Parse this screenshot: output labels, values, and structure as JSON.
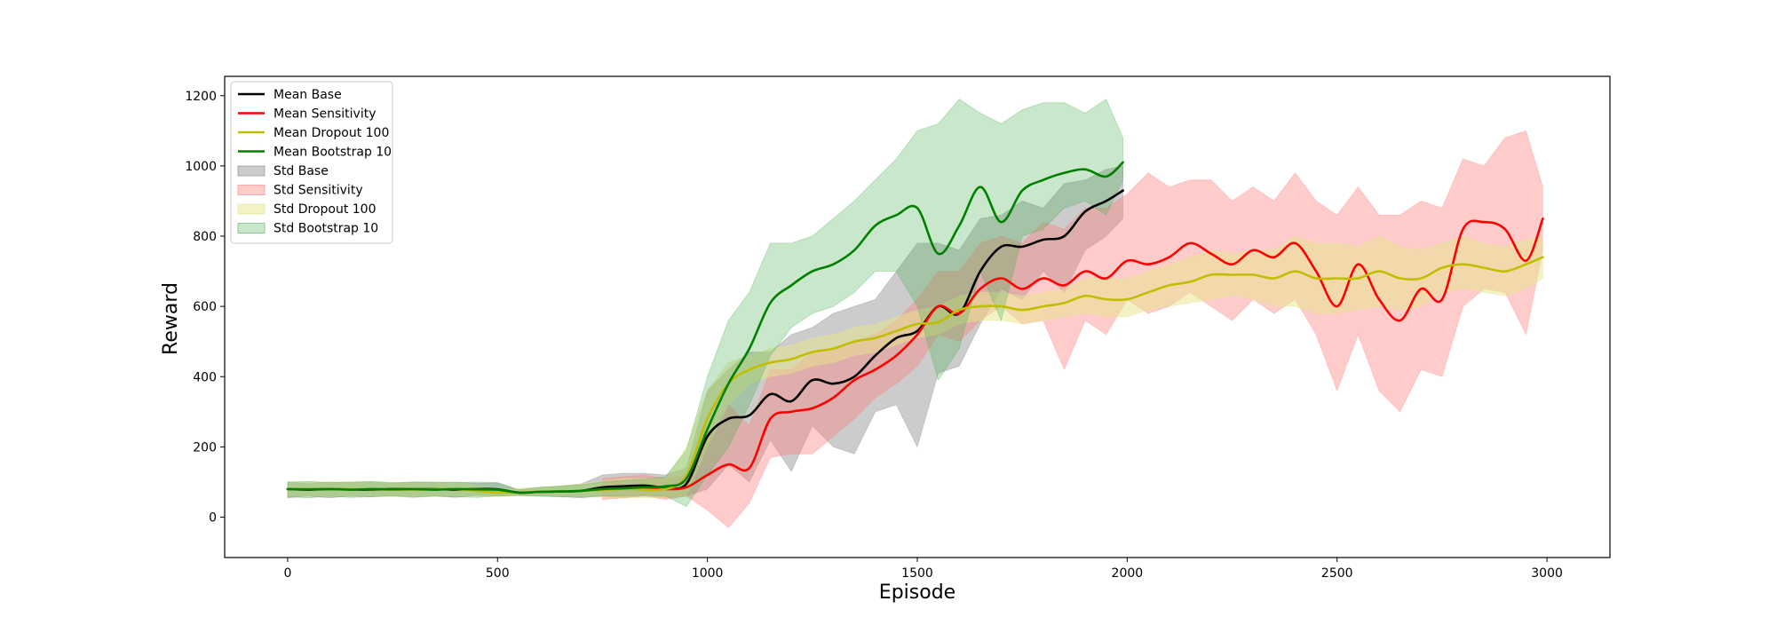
{
  "chart_data": {
    "type": "line",
    "title": "",
    "xlabel": "Episode",
    "ylabel": "Reward",
    "xlim": [
      -150,
      3150
    ],
    "ylim": [
      -115,
      1255
    ],
    "x_ticks": [
      0,
      500,
      1000,
      1500,
      2000,
      2500,
      3000
    ],
    "y_ticks": [
      0,
      200,
      400,
      600,
      800,
      1000,
      1200
    ],
    "grid": false,
    "legend_position": "upper left",
    "series": [
      {
        "name": "Mean Base",
        "kind": "line",
        "color": "#000000",
        "x": [
          0,
          50,
          100,
          150,
          200,
          250,
          300,
          350,
          400,
          450,
          500,
          550,
          600,
          650,
          700,
          750,
          800,
          850,
          900,
          950,
          1000,
          1050,
          1100,
          1150,
          1200,
          1250,
          1300,
          1350,
          1400,
          1450,
          1500,
          1550,
          1600,
          1650,
          1700,
          1750,
          1800,
          1850,
          1900,
          1950,
          1990
        ],
        "y": [
          80,
          78,
          80,
          79,
          78,
          80,
          79,
          80,
          78,
          80,
          79,
          70,
          72,
          73,
          75,
          85,
          88,
          90,
          85,
          95,
          230,
          280,
          290,
          350,
          330,
          390,
          380,
          400,
          460,
          510,
          530,
          600,
          580,
          700,
          770,
          770,
          790,
          800,
          870,
          900,
          930
        ]
      },
      {
        "name": "Mean Sensitivity",
        "kind": "line",
        "color": "#ff0000",
        "x": [
          750,
          800,
          850,
          900,
          950,
          1000,
          1050,
          1100,
          1150,
          1200,
          1250,
          1300,
          1350,
          1400,
          1450,
          1500,
          1550,
          1600,
          1650,
          1700,
          1750,
          1800,
          1850,
          1900,
          1950,
          2000,
          2050,
          2100,
          2150,
          2200,
          2250,
          2300,
          2350,
          2400,
          2450,
          2500,
          2550,
          2600,
          2650,
          2700,
          2750,
          2800,
          2850,
          2900,
          2950,
          2990
        ],
        "y": [
          80,
          82,
          85,
          80,
          85,
          120,
          150,
          140,
          280,
          300,
          310,
          340,
          390,
          420,
          460,
          520,
          600,
          580,
          650,
          680,
          650,
          680,
          660,
          700,
          680,
          730,
          720,
          740,
          780,
          750,
          720,
          760,
          740,
          780,
          700,
          600,
          720,
          620,
          560,
          650,
          620,
          820,
          840,
          820,
          730,
          850
        ]
      },
      {
        "name": "Mean Dropout 100",
        "kind": "line",
        "color": "#bfbf00",
        "x": [
          0,
          100,
          200,
          300,
          400,
          500,
          600,
          700,
          800,
          900,
          950,
          1000,
          1050,
          1100,
          1150,
          1200,
          1250,
          1300,
          1350,
          1400,
          1450,
          1500,
          1550,
          1600,
          1650,
          1700,
          1750,
          1800,
          1850,
          1900,
          1950,
          2000,
          2050,
          2100,
          2150,
          2200,
          2250,
          2300,
          2350,
          2400,
          2450,
          2500,
          2550,
          2600,
          2650,
          2700,
          2750,
          2800,
          2850,
          2900,
          2950,
          2990
        ],
        "y": [
          80,
          80,
          79,
          78,
          80,
          70,
          72,
          75,
          80,
          80,
          120,
          280,
          380,
          420,
          440,
          450,
          470,
          480,
          500,
          510,
          530,
          550,
          555,
          590,
          600,
          600,
          590,
          600,
          610,
          630,
          620,
          620,
          640,
          660,
          670,
          690,
          690,
          690,
          680,
          700,
          680,
          680,
          680,
          700,
          680,
          680,
          710,
          720,
          710,
          700,
          720,
          740
        ]
      },
      {
        "name": "Mean Bootstrap 10",
        "kind": "line",
        "color": "#008000",
        "x": [
          0,
          50,
          100,
          150,
          200,
          250,
          300,
          350,
          400,
          450,
          500,
          550,
          600,
          650,
          700,
          750,
          800,
          850,
          900,
          950,
          1000,
          1050,
          1100,
          1150,
          1200,
          1250,
          1300,
          1350,
          1400,
          1450,
          1500,
          1550,
          1600,
          1650,
          1700,
          1750,
          1800,
          1850,
          1900,
          1950,
          1990
        ],
        "y": [
          80,
          79,
          80,
          78,
          80,
          79,
          80,
          78,
          80,
          79,
          78,
          70,
          72,
          73,
          75,
          80,
          82,
          85,
          88,
          110,
          250,
          380,
          480,
          610,
          660,
          700,
          720,
          760,
          830,
          860,
          880,
          750,
          830,
          940,
          840,
          930,
          960,
          980,
          990,
          970,
          1010
        ]
      },
      {
        "name": "Std Base",
        "kind": "band",
        "color": "#808080",
        "opacity": 0.4,
        "x": [
          0,
          50,
          100,
          150,
          200,
          250,
          300,
          350,
          400,
          450,
          500,
          550,
          600,
          650,
          700,
          750,
          800,
          850,
          900,
          950,
          1000,
          1050,
          1100,
          1150,
          1200,
          1250,
          1300,
          1350,
          1400,
          1450,
          1500,
          1550,
          1600,
          1650,
          1700,
          1750,
          1800,
          1850,
          1900,
          1950,
          1990
        ],
        "lower": [
          55,
          60,
          55,
          60,
          58,
          62,
          58,
          60,
          56,
          62,
          60,
          62,
          60,
          58,
          55,
          60,
          55,
          60,
          55,
          60,
          80,
          150,
          100,
          220,
          130,
          260,
          200,
          180,
          300,
          320,
          200,
          410,
          430,
          550,
          650,
          620,
          700,
          640,
          760,
          800,
          850
        ],
        "upper": [
          100,
          95,
          100,
          98,
          100,
          96,
          100,
          98,
          100,
          96,
          98,
          78,
          85,
          88,
          95,
          120,
          125,
          125,
          120,
          140,
          360,
          420,
          470,
          470,
          520,
          540,
          580,
          600,
          620,
          700,
          780,
          780,
          760,
          850,
          860,
          900,
          880,
          950,
          960,
          990,
          1000
        ]
      },
      {
        "name": "Std Sensitivity",
        "kind": "band",
        "color": "#ff7f7f",
        "opacity": 0.4,
        "x": [
          750,
          800,
          850,
          900,
          950,
          1000,
          1050,
          1100,
          1150,
          1200,
          1250,
          1300,
          1350,
          1400,
          1450,
          1500,
          1550,
          1600,
          1650,
          1700,
          1750,
          1800,
          1850,
          1900,
          1950,
          2000,
          2050,
          2100,
          2150,
          2200,
          2250,
          2300,
          2350,
          2400,
          2450,
          2500,
          2550,
          2600,
          2650,
          2700,
          2750,
          2800,
          2850,
          2900,
          2950,
          2990
        ],
        "lower": [
          50,
          55,
          60,
          50,
          60,
          20,
          -30,
          40,
          170,
          180,
          180,
          230,
          280,
          340,
          380,
          430,
          520,
          500,
          560,
          600,
          550,
          560,
          420,
          560,
          520,
          620,
          580,
          600,
          640,
          600,
          560,
          620,
          580,
          620,
          520,
          360,
          520,
          360,
          300,
          420,
          400,
          600,
          650,
          640,
          520,
          760
        ],
        "upper": [
          110,
          115,
          120,
          110,
          120,
          220,
          320,
          260,
          420,
          420,
          470,
          480,
          500,
          520,
          560,
          620,
          700,
          700,
          780,
          800,
          780,
          840,
          820,
          880,
          880,
          920,
          980,
          940,
          960,
          960,
          900,
          940,
          900,
          980,
          900,
          860,
          940,
          860,
          860,
          900,
          880,
          1020,
          1000,
          1080,
          1100,
          940
        ]
      },
      {
        "name": "Std Dropout 100",
        "kind": "band",
        "color": "#e5e58c",
        "opacity": 0.5,
        "x": [
          0,
          100,
          200,
          300,
          400,
          500,
          600,
          700,
          800,
          900,
          950,
          1000,
          1050,
          1100,
          1150,
          1200,
          1250,
          1300,
          1350,
          1400,
          1450,
          1500,
          1550,
          1600,
          1650,
          1700,
          1750,
          1800,
          1850,
          1900,
          1950,
          2000,
          2050,
          2100,
          2150,
          2200,
          2250,
          2300,
          2350,
          2400,
          2450,
          2500,
          2550,
          2600,
          2650,
          2700,
          2750,
          2800,
          2850,
          2900,
          2950,
          2990
        ],
        "lower": [
          60,
          60,
          60,
          58,
          60,
          60,
          60,
          58,
          55,
          55,
          60,
          200,
          320,
          380,
          400,
          410,
          430,
          440,
          460,
          470,
          490,
          510,
          520,
          550,
          560,
          560,
          550,
          560,
          570,
          580,
          570,
          570,
          590,
          600,
          610,
          620,
          630,
          620,
          600,
          600,
          580,
          580,
          590,
          600,
          590,
          600,
          640,
          650,
          640,
          630,
          650,
          680
        ],
        "upper": [
          100,
          100,
          100,
          98,
          100,
          80,
          85,
          95,
          110,
          110,
          200,
          360,
          440,
          460,
          480,
          490,
          510,
          520,
          540,
          550,
          570,
          590,
          600,
          630,
          640,
          640,
          630,
          640,
          650,
          680,
          680,
          680,
          700,
          720,
          740,
          760,
          750,
          760,
          760,
          800,
          780,
          780,
          770,
          800,
          770,
          760,
          780,
          800,
          780,
          770,
          790,
          800
        ]
      },
      {
        "name": "Std Bootstrap 10",
        "kind": "band",
        "color": "#4caf50",
        "opacity": 0.3,
        "x": [
          0,
          50,
          100,
          150,
          200,
          250,
          300,
          350,
          400,
          450,
          500,
          550,
          600,
          650,
          700,
          750,
          800,
          850,
          900,
          950,
          1000,
          1050,
          1100,
          1150,
          1200,
          1250,
          1300,
          1350,
          1400,
          1450,
          1500,
          1550,
          1600,
          1650,
          1700,
          1750,
          1800,
          1850,
          1900,
          1950,
          1990
        ],
        "lower": [
          58,
          55,
          60,
          56,
          58,
          60,
          56,
          60,
          58,
          56,
          60,
          62,
          60,
          58,
          58,
          60,
          60,
          62,
          60,
          30,
          120,
          200,
          320,
          460,
          540,
          580,
          600,
          640,
          700,
          700,
          600,
          390,
          480,
          700,
          560,
          800,
          820,
          880,
          900,
          860,
          960
        ],
        "upper": [
          100,
          102,
          98,
          100,
          102,
          98,
          100,
          100,
          98,
          100,
          98,
          78,
          85,
          88,
          92,
          100,
          105,
          108,
          115,
          190,
          400,
          560,
          640,
          780,
          780,
          800,
          850,
          900,
          960,
          1020,
          1100,
          1120,
          1190,
          1150,
          1120,
          1160,
          1180,
          1180,
          1150,
          1190,
          1080
        ]
      }
    ]
  }
}
